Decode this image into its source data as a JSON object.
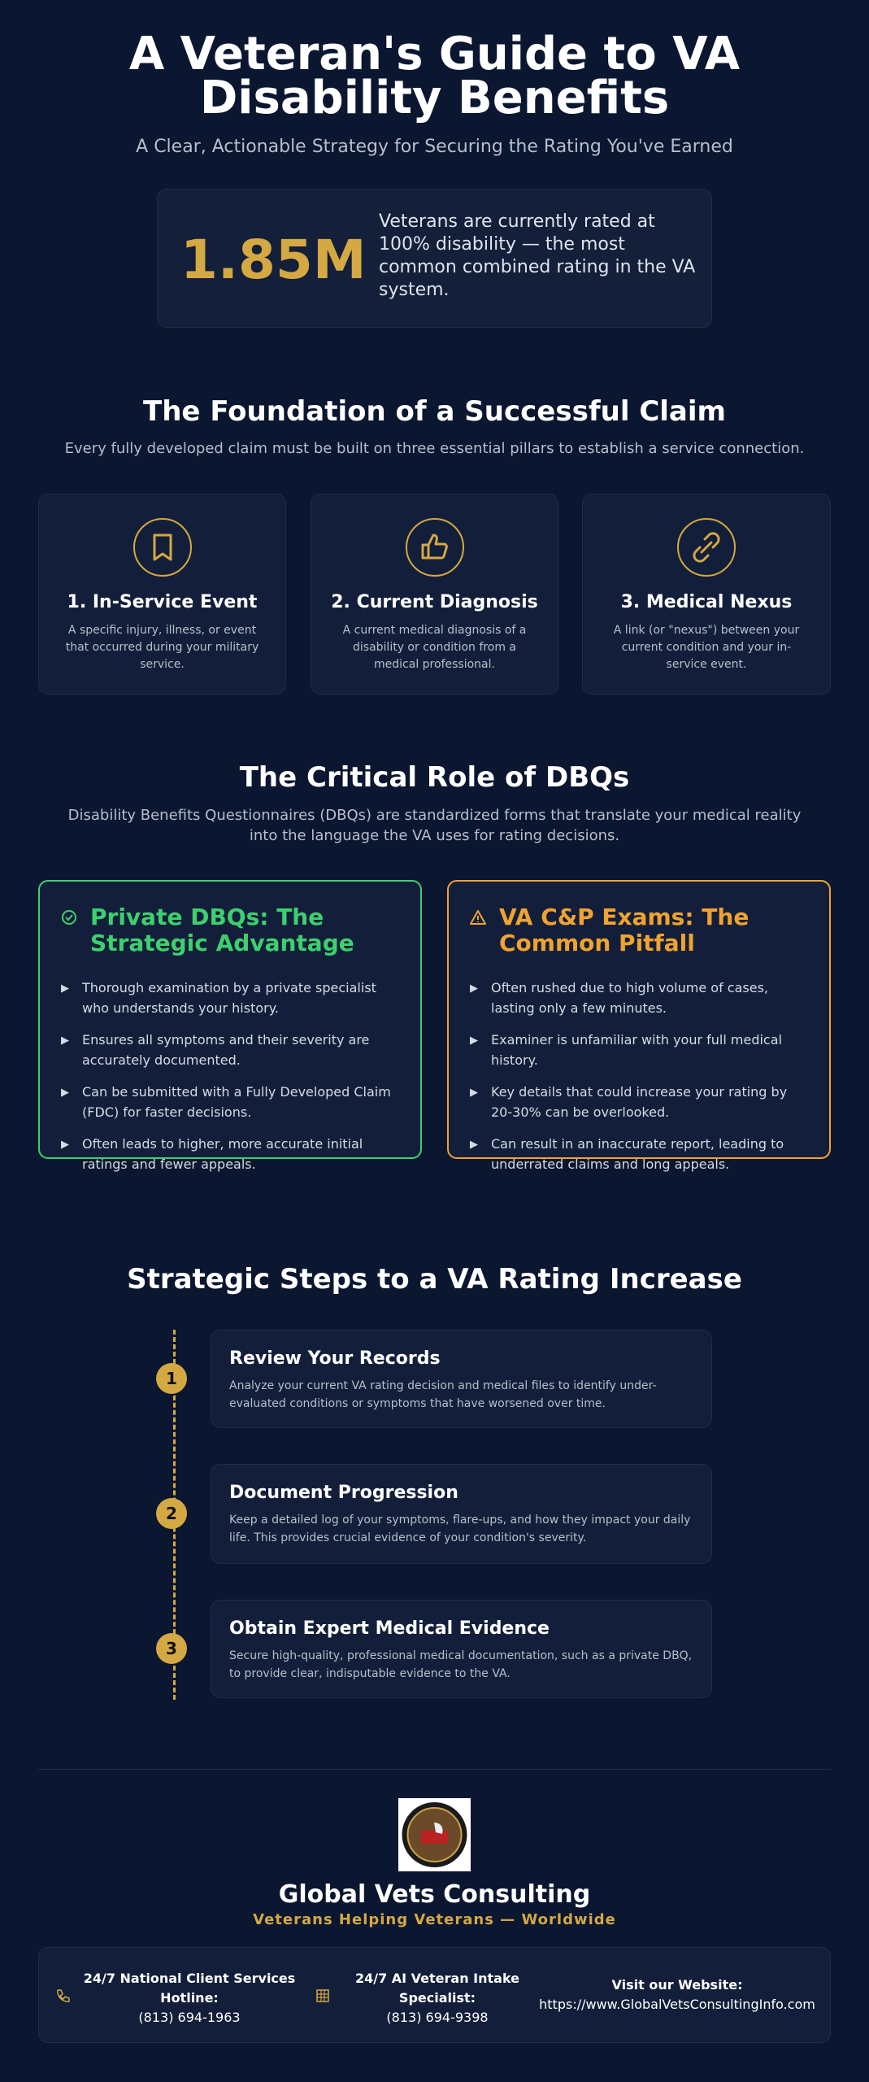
{
  "header": {
    "title": "A Veteran's Guide to VA Disability Benefits",
    "subtitle": "A Clear, Actionable Strategy for Securing the Rating You've Earned"
  },
  "stat": {
    "value": "1.85M",
    "text": "Veterans are currently rated at 100% disability — the most common combined rating in the VA system."
  },
  "foundation": {
    "title": "The Foundation of a Successful Claim",
    "subtitle": "Every fully developed claim must be built on three essential pillars to establish a service connection.",
    "pillars": [
      {
        "title": "1. In-Service Event",
        "text": "A specific injury, illness, or event that occurred during your military service."
      },
      {
        "title": "2. Current Diagnosis",
        "text": "A current medical diagnosis of a disability or condition from a medical professional."
      },
      {
        "title": "3. Medical Nexus",
        "text": "A link (or \"nexus\") between your current condition and your in-service event."
      }
    ]
  },
  "dbq": {
    "title": "The Critical Role of DBQs",
    "subtitle": "Disability Benefits Questionnaires (DBQs) are standardized forms that translate your medical reality into the language the VA uses for rating decisions.",
    "cards": [
      {
        "title": "Private DBQs: The Strategic Advantage",
        "items": [
          "Thorough examination by a private specialist who understands your history.",
          "Ensures all symptoms and their severity are accurately documented.",
          "Can be submitted with a Fully Developed Claim (FDC) for faster decisions.",
          "Often leads to higher, more accurate initial ratings and fewer appeals."
        ]
      },
      {
        "title": "VA C&P Exams: The Common Pitfall",
        "items": [
          "Often rushed due to high volume of cases, lasting only a few minutes.",
          "Examiner is unfamiliar with your full medical history.",
          "Key details that could increase your rating by 20-30% can be overlooked.",
          "Can result in an inaccurate report, leading to underrated claims and long appeals."
        ]
      }
    ]
  },
  "steps": {
    "title": "Strategic Steps to a VA Rating Increase",
    "items": [
      {
        "number": "1",
        "title": "Review Your Records",
        "text": "Analyze your current VA rating decision and medical files to identify under-evaluated conditions or symptoms that have worsened over time."
      },
      {
        "number": "2",
        "title": "Document Progression",
        "text": "Keep a detailed log of your symptoms, flare-ups, and how they impact your daily life. This provides crucial evidence of your condition's severity."
      },
      {
        "number": "3",
        "title": "Obtain Expert Medical Evidence",
        "text": "Secure high-quality, professional medical documentation, such as a private DBQ, to provide clear, indisputable evidence to the VA."
      }
    ]
  },
  "footer": {
    "company": "Global Vets Consulting",
    "tagline": "Veterans Helping Veterans — Worldwide",
    "contacts": [
      {
        "label": "24/7 National Client Services Hotline:",
        "value": "(813) 694-1963"
      },
      {
        "label": "24/7 AI Veteran Intake Specialist:",
        "value": "(813) 694-9398"
      },
      {
        "label": "Visit our Website:",
        "value": "https://www.GlobalVetsConsultingInfo.com"
      }
    ]
  }
}
